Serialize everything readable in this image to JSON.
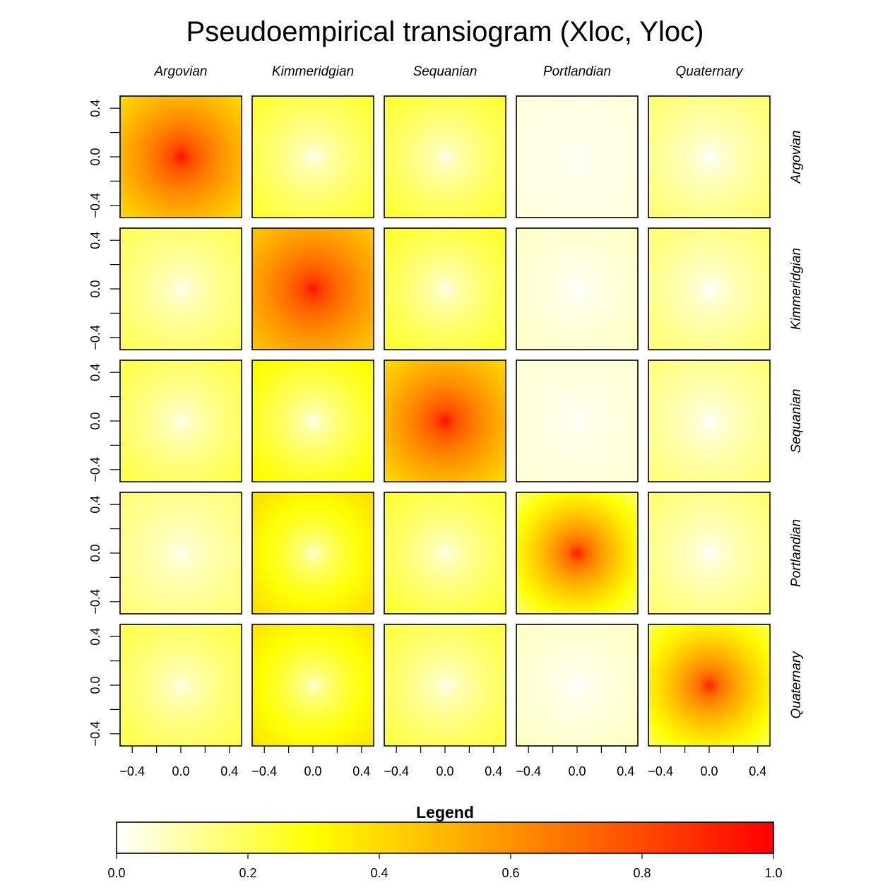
{
  "chart_data": {
    "type": "heatmap",
    "title": "Pseudoempirical transiogram (Xloc, Yloc)",
    "categories": [
      "Argovian",
      "Kimmeridgian",
      "Sequanian",
      "Portlandian",
      "Quaternary"
    ],
    "x_ticks": [
      "−0.4",
      "0.0",
      "0.4"
    ],
    "y_ticks": [
      "−0.4",
      "0.0",
      "0.4"
    ],
    "x_range": [
      -0.5,
      0.5
    ],
    "y_range": [
      -0.5,
      0.5
    ],
    "legend": {
      "title": "Legend",
      "ticks": [
        "0.0",
        "0.2",
        "0.4",
        "0.6",
        "0.8",
        "1.0"
      ],
      "range": [
        0,
        1
      ],
      "colors": [
        "#ffffff",
        "#ffff00",
        "#ff0000"
      ]
    },
    "panels": [
      {
        "row": "Argovian",
        "col": "Argovian",
        "center": 0.95,
        "edge": 0.4
      },
      {
        "row": "Argovian",
        "col": "Kimmeridgian",
        "center": 0.02,
        "edge": 0.25
      },
      {
        "row": "Argovian",
        "col": "Sequanian",
        "center": 0.02,
        "edge": 0.25
      },
      {
        "row": "Argovian",
        "col": "Portlandian",
        "center": 0.01,
        "edge": 0.04
      },
      {
        "row": "Argovian",
        "col": "Quaternary",
        "center": 0.0,
        "edge": 0.17
      },
      {
        "row": "Kimmeridgian",
        "col": "Argovian",
        "center": 0.02,
        "edge": 0.2
      },
      {
        "row": "Kimmeridgian",
        "col": "Kimmeridgian",
        "center": 0.95,
        "edge": 0.45
      },
      {
        "row": "Kimmeridgian",
        "col": "Sequanian",
        "center": 0.02,
        "edge": 0.26
      },
      {
        "row": "Kimmeridgian",
        "col": "Portlandian",
        "center": 0.0,
        "edge": 0.07
      },
      {
        "row": "Kimmeridgian",
        "col": "Quaternary",
        "center": 0.0,
        "edge": 0.17
      },
      {
        "row": "Sequanian",
        "col": "Argovian",
        "center": 0.02,
        "edge": 0.22
      },
      {
        "row": "Sequanian",
        "col": "Kimmeridgian",
        "center": 0.02,
        "edge": 0.32
      },
      {
        "row": "Sequanian",
        "col": "Sequanian",
        "center": 0.95,
        "edge": 0.4
      },
      {
        "row": "Sequanian",
        "col": "Portlandian",
        "center": 0.01,
        "edge": 0.05
      },
      {
        "row": "Sequanian",
        "col": "Quaternary",
        "center": 0.0,
        "edge": 0.16
      },
      {
        "row": "Portlandian",
        "col": "Argovian",
        "center": 0.02,
        "edge": 0.16
      },
      {
        "row": "Portlandian",
        "col": "Kimmeridgian",
        "center": 0.05,
        "edge": 0.4
      },
      {
        "row": "Portlandian",
        "col": "Sequanian",
        "center": 0.02,
        "edge": 0.25
      },
      {
        "row": "Portlandian",
        "col": "Portlandian",
        "center": 0.92,
        "edge": 0.17
      },
      {
        "row": "Portlandian",
        "col": "Quaternary",
        "center": 0.0,
        "edge": 0.17
      },
      {
        "row": "Quaternary",
        "col": "Argovian",
        "center": 0.03,
        "edge": 0.22
      },
      {
        "row": "Quaternary",
        "col": "Kimmeridgian",
        "center": 0.05,
        "edge": 0.38
      },
      {
        "row": "Quaternary",
        "col": "Sequanian",
        "center": 0.02,
        "edge": 0.23
      },
      {
        "row": "Quaternary",
        "col": "Portlandian",
        "center": 0.0,
        "edge": 0.07
      },
      {
        "row": "Quaternary",
        "col": "Quaternary",
        "center": 0.9,
        "edge": 0.2
      }
    ]
  }
}
